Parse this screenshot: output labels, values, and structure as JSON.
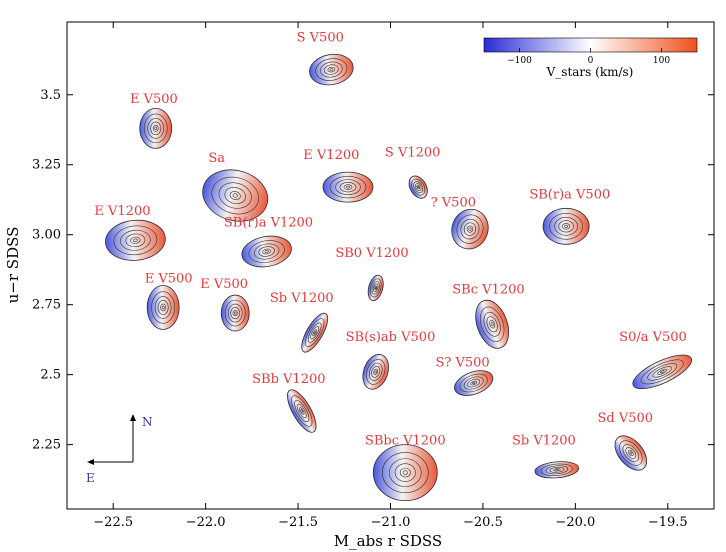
{
  "chart_data": {
    "type": "scatter",
    "title": "",
    "xlabel": "M_abs r SDSS",
    "ylabel": "u−r SDSS",
    "xlim": [
      -22.75,
      -19.25
    ],
    "ylim": [
      2.02,
      3.76
    ],
    "xticks": [
      -22.5,
      -22.0,
      -21.5,
      -21.0,
      -20.5,
      -20.0,
      -19.5
    ],
    "xtick_labels": [
      "−22.5",
      "−22.0",
      "−21.5",
      "−21.0",
      "−20.5",
      "−20.0",
      "−19.5"
    ],
    "yticks": [
      2.25,
      2.5,
      2.75,
      3.0,
      3.25,
      3.5
    ],
    "ytick_labels": [
      "2.25",
      "2.5",
      "2.75",
      "3.00",
      "3.25",
      "3.5"
    ],
    "colorbar": {
      "label": "V_stars (km/s)",
      "ticks": [
        -100,
        0,
        100
      ],
      "tick_labels": [
        "−100",
        "0",
        "100"
      ],
      "range": [
        -150,
        150
      ],
      "colors": [
        "#2b2bd6",
        "#ffffff",
        "#f0501e"
      ]
    },
    "compass": {
      "north": "N",
      "east": "E"
    },
    "galaxies": [
      {
        "label": "S V500",
        "x": -21.32,
        "y": 3.59,
        "w": 44,
        "h": 30,
        "angle": -10
      },
      {
        "label": "E V500",
        "x": -22.27,
        "y": 3.38,
        "w": 32,
        "h": 40,
        "angle": 0
      },
      {
        "label": "Sa",
        "x": -21.84,
        "y": 3.14,
        "w": 66,
        "h": 50,
        "angle": 15
      },
      {
        "label": "E V1200",
        "x": -21.23,
        "y": 3.17,
        "w": 50,
        "h": 30,
        "angle": 0
      },
      {
        "label": "S V1200",
        "x": -20.85,
        "y": 3.17,
        "w": 16,
        "h": 24,
        "angle": -30
      },
      {
        "label": "E V1200",
        "x": -22.38,
        "y": 2.98,
        "w": 60,
        "h": 40,
        "angle": -5
      },
      {
        "label": "SB(r)a V1200",
        "x": -21.67,
        "y": 2.94,
        "w": 50,
        "h": 30,
        "angle": -10
      },
      {
        "label": "? V500",
        "x": -20.57,
        "y": 3.02,
        "w": 36,
        "h": 40,
        "angle": 20
      },
      {
        "label": "SB(r)a V500",
        "x": -20.05,
        "y": 3.03,
        "w": 46,
        "h": 36,
        "angle": 0
      },
      {
        "label": "E V500",
        "x": -22.23,
        "y": 2.74,
        "w": 32,
        "h": 44,
        "angle": 0
      },
      {
        "label": "E V500",
        "x": -21.84,
        "y": 2.72,
        "w": 28,
        "h": 36,
        "angle": 0
      },
      {
        "label": "SB0 V1200",
        "x": -21.08,
        "y": 2.81,
        "w": 14,
        "h": 26,
        "angle": 15
      },
      {
        "label": "Sb V1200",
        "x": -21.41,
        "y": 2.65,
        "w": 16,
        "h": 44,
        "angle": 30
      },
      {
        "label": "SBc V1200",
        "x": -20.45,
        "y": 2.68,
        "w": 30,
        "h": 50,
        "angle": -20
      },
      {
        "label": "SB(s)ab V500",
        "x": -21.08,
        "y": 2.51,
        "w": 24,
        "h": 36,
        "angle": 20
      },
      {
        "label": "S? V500",
        "x": -20.55,
        "y": 2.47,
        "w": 40,
        "h": 22,
        "angle": -20
      },
      {
        "label": "S0/a V500",
        "x": -19.53,
        "y": 2.51,
        "w": 64,
        "h": 22,
        "angle": -25
      },
      {
        "label": "SBb V1200",
        "x": -21.48,
        "y": 2.37,
        "w": 18,
        "h": 48,
        "angle": -30
      },
      {
        "label": "SBbc V1200",
        "x": -20.92,
        "y": 2.15,
        "w": 64,
        "h": 56,
        "angle": 0
      },
      {
        "label": "Sb V1200",
        "x": -20.1,
        "y": 2.16,
        "w": 44,
        "h": 16,
        "angle": -5
      },
      {
        "label": "Sd V500",
        "x": -19.7,
        "y": 2.22,
        "w": 24,
        "h": 40,
        "angle": -40
      }
    ],
    "galaxy_labels": [
      {
        "text": "S V500",
        "x": -21.38,
        "y": 3.69
      },
      {
        "text": "E V500",
        "x": -22.28,
        "y": 3.47
      },
      {
        "text": "Sa",
        "x": -21.94,
        "y": 3.26
      },
      {
        "text": "E V1200",
        "x": -21.32,
        "y": 3.27
      },
      {
        "text": "S V1200",
        "x": -20.88,
        "y": 3.28
      },
      {
        "text": "E V1200",
        "x": -22.45,
        "y": 3.07
      },
      {
        "text": "SB(r)a V1200",
        "x": -21.66,
        "y": 3.03
      },
      {
        "text": "? V500",
        "x": -20.66,
        "y": 3.1
      },
      {
        "text": "SB(r)a V500",
        "x": -20.03,
        "y": 3.13
      },
      {
        "text": "E V500",
        "x": -22.2,
        "y": 2.83
      },
      {
        "text": "E V500",
        "x": -21.9,
        "y": 2.81
      },
      {
        "text": "SB0 V1200",
        "x": -21.1,
        "y": 2.92
      },
      {
        "text": "Sb V1200",
        "x": -21.48,
        "y": 2.76
      },
      {
        "text": "SBc V1200",
        "x": -20.47,
        "y": 2.79
      },
      {
        "text": "SB(s)ab V500",
        "x": -21.0,
        "y": 2.62
      },
      {
        "text": "S? V500",
        "x": -20.61,
        "y": 2.53
      },
      {
        "text": "S0/a V500",
        "x": -19.58,
        "y": 2.62
      },
      {
        "text": "SBb V1200",
        "x": -21.55,
        "y": 2.47
      },
      {
        "text": "SBbc V1200",
        "x": -20.92,
        "y": 2.25
      },
      {
        "text": "Sb V1200",
        "x": -20.17,
        "y": 2.25
      },
      {
        "text": "Sd V500",
        "x": -19.73,
        "y": 2.33
      }
    ],
    "grid": false
  }
}
